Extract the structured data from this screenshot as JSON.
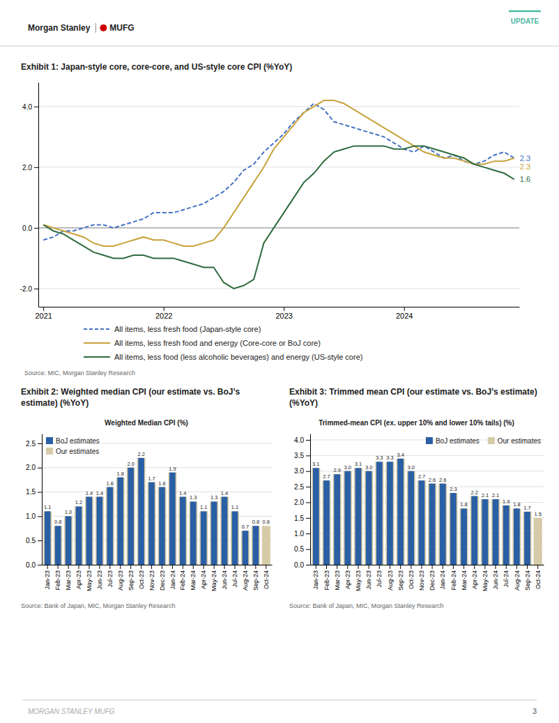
{
  "header": {
    "brand": [
      "Morgan Stanley",
      "MUFG"
    ],
    "badge": "UPDATE",
    "badge_color": "#4db8a4"
  },
  "footer": {
    "text": "MORGAN STANLEY MUFG",
    "page_number": "3"
  },
  "chart_data": [
    {
      "type": "line",
      "title": "Exhibit 1: Japan-style core, core-core, and US-style core CPI (%YoY)",
      "source": "Source: MIC, Morgan Stanley Research",
      "categories": [
        "2021",
        null,
        null,
        null,
        null,
        null,
        null,
        null,
        null,
        null,
        null,
        null,
        "2022",
        null,
        null,
        null,
        null,
        null,
        null,
        null,
        null,
        null,
        null,
        null,
        "2023",
        null,
        null,
        null,
        null,
        null,
        null,
        null,
        null,
        null,
        null,
        null,
        "2024",
        null,
        null,
        null,
        null,
        null,
        null,
        null,
        null,
        null,
        null,
        null
      ],
      "series": [
        {
          "name": "All items, less fresh food (Japan-style core)",
          "color": "#4472c4",
          "line_style": "dashed",
          "values": [
            -0.4,
            -0.3,
            -0.1,
            -0.1,
            0.0,
            0.1,
            0.1,
            0.0,
            0.1,
            0.2,
            0.3,
            0.5,
            0.5,
            0.5,
            0.6,
            0.7,
            0.8,
            1.0,
            1.2,
            1.5,
            1.9,
            2.1,
            2.5,
            2.8,
            3.1,
            3.5,
            3.8,
            4.1,
            3.9,
            3.5,
            3.4,
            3.3,
            3.2,
            3.1,
            3.0,
            2.8,
            2.6,
            2.5,
            2.7,
            2.5,
            2.3,
            2.4,
            2.2,
            2.1,
            2.2,
            2.4,
            2.5,
            2.3
          ]
        },
        {
          "name": "All items, less fresh food and energy (Core-core or BoJ core)",
          "color": "#c8a23a",
          "line_style": "solid",
          "values": [
            0.1,
            0.0,
            -0.1,
            -0.2,
            -0.3,
            -0.5,
            -0.6,
            -0.6,
            -0.5,
            -0.4,
            -0.3,
            -0.4,
            -0.4,
            -0.5,
            -0.6,
            -0.6,
            -0.5,
            -0.4,
            0.0,
            0.5,
            1.0,
            1.5,
            2.0,
            2.6,
            3.0,
            3.4,
            3.8,
            4.0,
            4.2,
            4.2,
            4.1,
            3.9,
            3.7,
            3.5,
            3.3,
            3.1,
            2.9,
            2.7,
            2.5,
            2.4,
            2.3,
            2.3,
            2.2,
            2.1,
            2.1,
            2.2,
            2.2,
            2.3
          ]
        },
        {
          "name": "All items, less food (less alcoholic beverages) and energy (US-style core)",
          "color": "#2e6b3e",
          "line_style": "solid",
          "values": [
            0.1,
            -0.1,
            -0.2,
            -0.4,
            -0.6,
            -0.8,
            -0.9,
            -1.0,
            -1.0,
            -0.9,
            -0.9,
            -1.0,
            -1.0,
            -1.0,
            -1.1,
            -1.2,
            -1.3,
            -1.3,
            -1.8,
            -2.0,
            -1.9,
            -1.7,
            -0.5,
            0.0,
            0.5,
            1.0,
            1.5,
            1.8,
            2.2,
            2.5,
            2.6,
            2.7,
            2.7,
            2.7,
            2.7,
            2.6,
            2.6,
            2.7,
            2.7,
            2.6,
            2.5,
            2.4,
            2.3,
            2.1,
            2.0,
            1.9,
            1.8,
            1.6
          ]
        }
      ],
      "ylim": [
        -2.6,
        4.8
      ],
      "yticks": [
        {
          "value": -2.0,
          "label": "-2.0"
        },
        {
          "value": 0.0,
          "label": "0.0"
        },
        {
          "value": 2.0,
          "label": "2.0"
        },
        {
          "value": 4.0,
          "label": "4.0"
        }
      ],
      "grid": true,
      "legend": "bottom"
    },
    {
      "type": "bar",
      "title": "Exhibit 2: Weighted median CPI (our estimate vs. BoJ’s estimate) (%YoY)",
      "subtitle": "Weighted Median CPI (%)",
      "source": "Source: Bank of Japan, MIC, Morgan Stanley Research",
      "categories": [
        "Jan-23",
        "Feb-23",
        "Mar-23",
        "Apr-23",
        "May-23",
        "Jun-23",
        "Jul-23",
        "Aug-23",
        "Sep-23",
        "Oct-23",
        "Nov-23",
        "Dec-23",
        "Jan-24",
        "Feb-24",
        "Mar-24",
        "Apr-24",
        "May-24",
        "Jun-24",
        "Jul-24",
        "Aug-24",
        "Sep-24",
        "Oct-24"
      ],
      "series": [
        {
          "name": "BoJ estimates",
          "color": "#2b5fa5",
          "data_labels": true,
          "values": [
            1.1,
            0.8,
            1.0,
            1.2,
            1.4,
            1.4,
            1.6,
            1.8,
            2.0,
            2.2,
            1.7,
            1.6,
            1.9,
            1.4,
            1.3,
            1.1,
            1.3,
            1.4,
            1.1,
            0.7,
            0.8,
            null
          ],
          "value_labels": [
            "1.1",
            "0.8",
            "1.0",
            "1.2",
            "1.4",
            "1.4",
            "1.6",
            "1.8",
            "2.0",
            "2.2",
            "1.7",
            "1.6",
            "1.9",
            "1.4",
            "1.3",
            "1.1",
            "1.3",
            "1.4",
            "1.1",
            "0.7",
            "0.8",
            null
          ]
        },
        {
          "name": "Our estimates",
          "color": "#d6cba8",
          "data_labels": true,
          "values": [
            1.1,
            0.8,
            1.0,
            1.2,
            1.4,
            1.4,
            1.6,
            1.8,
            2.0,
            2.2,
            1.7,
            1.6,
            1.9,
            1.4,
            1.3,
            1.1,
            1.3,
            1.4,
            1.1,
            0.7,
            0.8,
            0.8
          ],
          "value_labels": [
            null,
            null,
            null,
            null,
            null,
            null,
            null,
            null,
            null,
            null,
            null,
            null,
            null,
            null,
            null,
            null,
            null,
            null,
            null,
            null,
            null,
            "0.8"
          ]
        }
      ],
      "ylim": [
        0.0,
        2.7
      ],
      "yticks": [
        {
          "value": 0.0,
          "label": "0.0"
        },
        0.5,
        {
          "value": 1.0,
          "label": "1.0"
        },
        1.5,
        {
          "value": 2.0,
          "label": "2.0"
        },
        2.5
      ],
      "grid": true,
      "legend": "upper-left"
    },
    {
      "type": "bar",
      "title": "Exhibit 3: Trimmed mean CPI (our estimate vs. BoJ’s estimate) (%YoY)",
      "subtitle": "Trimmed-mean CPI (ex. upper 10% and lower 10% tails) (%)",
      "source": "Source: Bank of Japan, MIC, Morgan Stanley Research",
      "categories": [
        "Jan-23",
        "Feb-23",
        "Mar-23",
        "Apr-23",
        "May-23",
        "Jun-23",
        "Jul-23",
        "Aug-23",
        "Sep-23",
        "Oct-23",
        "Nov-23",
        "Dec-23",
        "Jan-24",
        "Feb-24",
        "Mar-24",
        "Apr-24",
        "May-24",
        "Jun-24",
        "Jul-24",
        "Aug-24",
        "Sep-24",
        "Oct-24"
      ],
      "series": [
        {
          "name": "BoJ estimates",
          "color": "#2b5fa5",
          "data_labels": true,
          "values": [
            3.1,
            2.7,
            2.9,
            3.0,
            3.1,
            3.0,
            3.3,
            3.3,
            3.4,
            3.0,
            2.7,
            2.6,
            2.6,
            2.3,
            1.8,
            2.2,
            2.1,
            2.1,
            1.9,
            1.8,
            1.7,
            null
          ],
          "value_labels": [
            "3.1",
            "2.7",
            "2.9",
            "3.0",
            "3.1",
            "3.0",
            "3.3",
            "3.3",
            "3.4",
            "3.0",
            "2.7",
            "2.6",
            "2.6",
            "2.3",
            "1.8",
            "2.2",
            "2.1",
            "2.1",
            "1.9",
            "1.8",
            "1.7",
            null
          ]
        },
        {
          "name": "Our estimates",
          "color": "#d6cba8",
          "data_labels": true,
          "values": [
            3.1,
            2.7,
            2.9,
            3.0,
            3.1,
            3.0,
            3.3,
            3.3,
            3.4,
            3.0,
            2.7,
            2.6,
            2.6,
            2.3,
            1.8,
            2.2,
            2.1,
            2.1,
            1.9,
            1.8,
            1.7,
            1.5
          ],
          "value_labels": [
            null,
            null,
            null,
            null,
            null,
            null,
            null,
            null,
            null,
            null,
            null,
            null,
            null,
            null,
            null,
            null,
            null,
            null,
            null,
            null,
            null,
            "1.5"
          ]
        }
      ],
      "ylim": [
        0.0,
        4.2
      ],
      "yticks": [
        {
          "value": 0.0,
          "label": "0.0"
        },
        0.5,
        {
          "value": 1.0,
          "label": "1.0"
        },
        1.5,
        {
          "value": 2.0,
          "label": "2.0"
        },
        2.5,
        {
          "value": 3.0,
          "label": "3.0"
        },
        3.5,
        {
          "value": 4.0,
          "label": "4.0"
        }
      ],
      "grid": true,
      "legend": "upper-right"
    }
  ]
}
